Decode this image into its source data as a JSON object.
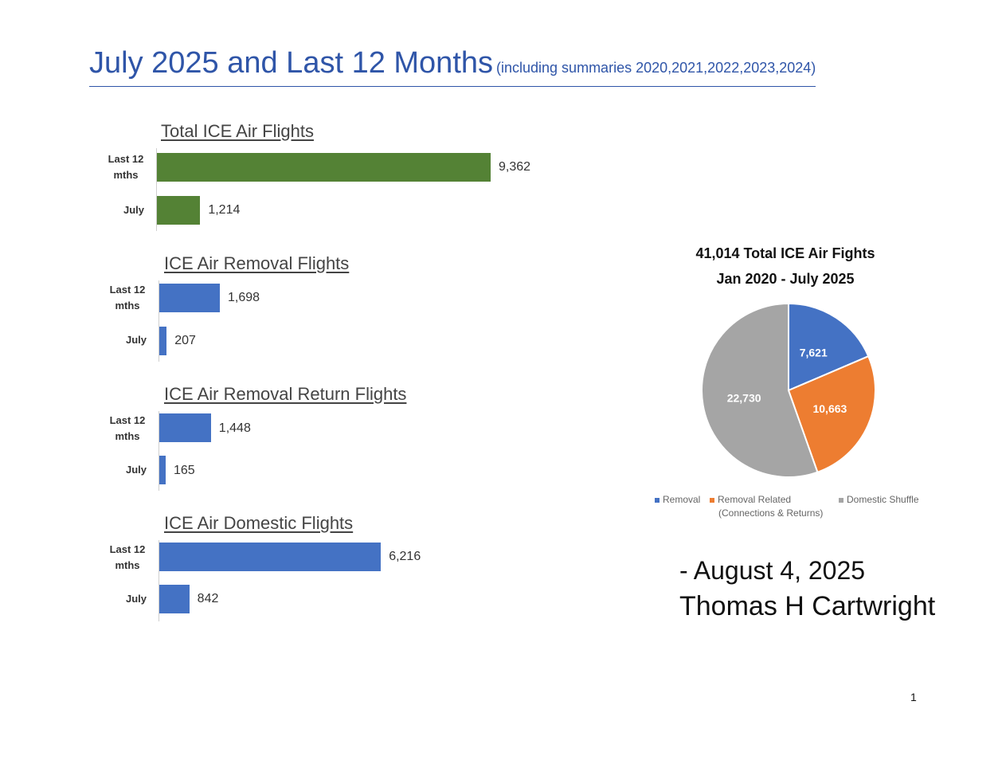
{
  "header": {
    "title": "July 2025 and Last 12 Months",
    "subtitle": "(including summaries 2020,2021,2022,2023,2024)"
  },
  "colors": {
    "title": "#2f55a8",
    "total_bar": "#548235",
    "blue_bar": "#4472c4",
    "removal": "#4472c4",
    "removal_related": "#ed7d31",
    "domestic": "#a5a5a5"
  },
  "chart_data": [
    {
      "type": "bar",
      "title": "Total ICE Air Flights",
      "categories": [
        "Last 12\nmths",
        "July"
      ],
      "values": [
        9362,
        1214
      ],
      "value_labels": [
        "9,362",
        "1,214"
      ],
      "color": "#548235"
    },
    {
      "type": "bar",
      "title": "ICE Air Removal Flights",
      "categories": [
        "Last 12\nmths",
        "July"
      ],
      "values": [
        1698,
        207
      ],
      "value_labels": [
        "1,698",
        "207"
      ],
      "color": "#4472c4"
    },
    {
      "type": "bar",
      "title": "ICE Air Removal Return Flights",
      "categories": [
        "Last 12\nmths",
        "July"
      ],
      "values": [
        1448,
        165
      ],
      "value_labels": [
        "1,448",
        "165"
      ],
      "color": "#4472c4"
    },
    {
      "type": "bar",
      "title": "ICE Air Domestic Flights",
      "categories": [
        "Last 12\nmths",
        "July"
      ],
      "values": [
        6216,
        842
      ],
      "value_labels": [
        "6,216",
        "842"
      ],
      "color": "#4472c4"
    },
    {
      "type": "pie",
      "title_line1": "41,014 Total ICE Air Fights",
      "title_line2": "Jan 2020 - July 2025",
      "labels": [
        "Removal",
        "Removal Related",
        "Domestic Shuffle"
      ],
      "legend_note": "(Connections & Returns)",
      "values": [
        7621,
        10663,
        22730
      ],
      "value_labels": [
        "7,621",
        "10,663",
        "22,730"
      ],
      "colors": [
        "#4472c4",
        "#ed7d31",
        "#a5a5a5"
      ]
    }
  ],
  "footer": {
    "date_line": "-  August 4, 2025",
    "author": "Thomas H Cartwright",
    "page_number": "1"
  }
}
